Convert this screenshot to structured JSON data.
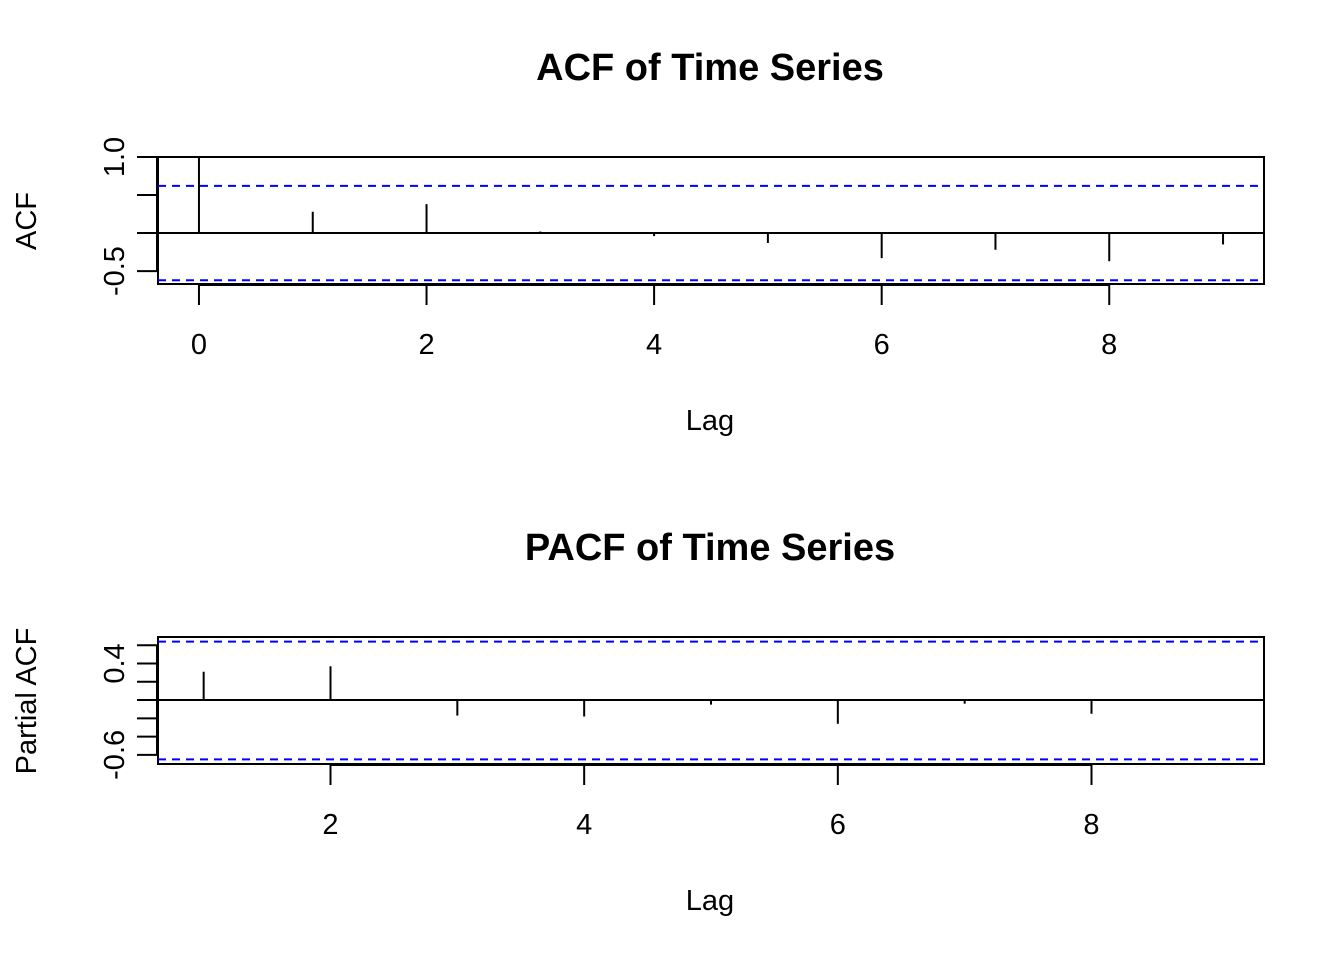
{
  "chart_data": [
    {
      "type": "bar",
      "title": "ACF of Time Series",
      "xlabel": "Lag",
      "ylabel": "ACF",
      "xlim": [
        -0.36,
        9.36
      ],
      "ylim": [
        -0.67,
        1.0
      ],
      "x_ticks": [
        0,
        2,
        4,
        6,
        8
      ],
      "y_ticks": [
        1.0,
        0.5,
        0.0,
        -0.5
      ],
      "y_tick_labels": [
        "1.0",
        "",
        "",
        "-0.5"
      ],
      "lags": [
        0,
        1,
        2,
        3,
        4,
        5,
        6,
        7,
        8,
        9
      ],
      "values": [
        1.0,
        0.28,
        0.38,
        0.02,
        -0.04,
        -0.13,
        -0.33,
        -0.22,
        -0.37,
        -0.15
      ],
      "ci": [
        0.62,
        -0.62
      ],
      "colors": {
        "bars": "#000000",
        "ci": "#0000ff",
        "frame": "#000000"
      },
      "grid": false
    },
    {
      "type": "bar",
      "title": "PACF of Time Series",
      "xlabel": "Lag",
      "ylabel": "Partial ACF",
      "xlim": [
        0.64,
        9.36
      ],
      "ylim": [
        -0.7,
        0.69
      ],
      "x_ticks": [
        2,
        4,
        6,
        8
      ],
      "y_ticks": [
        0.6,
        0.4,
        0.2,
        0.0,
        -0.2,
        -0.4,
        -0.6
      ],
      "y_tick_labels": [
        "",
        "0.4",
        "",
        "",
        "",
        "",
        "-0.6"
      ],
      "lags": [
        1,
        2,
        3,
        4,
        5,
        6,
        7,
        8,
        9
      ],
      "values": [
        0.31,
        0.37,
        -0.17,
        -0.18,
        -0.05,
        -0.26,
        -0.04,
        -0.15,
        -0.01
      ],
      "ci": [
        0.64,
        -0.65
      ],
      "colors": {
        "bars": "#000000",
        "ci": "#0000ff",
        "frame": "#000000"
      },
      "grid": false
    }
  ]
}
